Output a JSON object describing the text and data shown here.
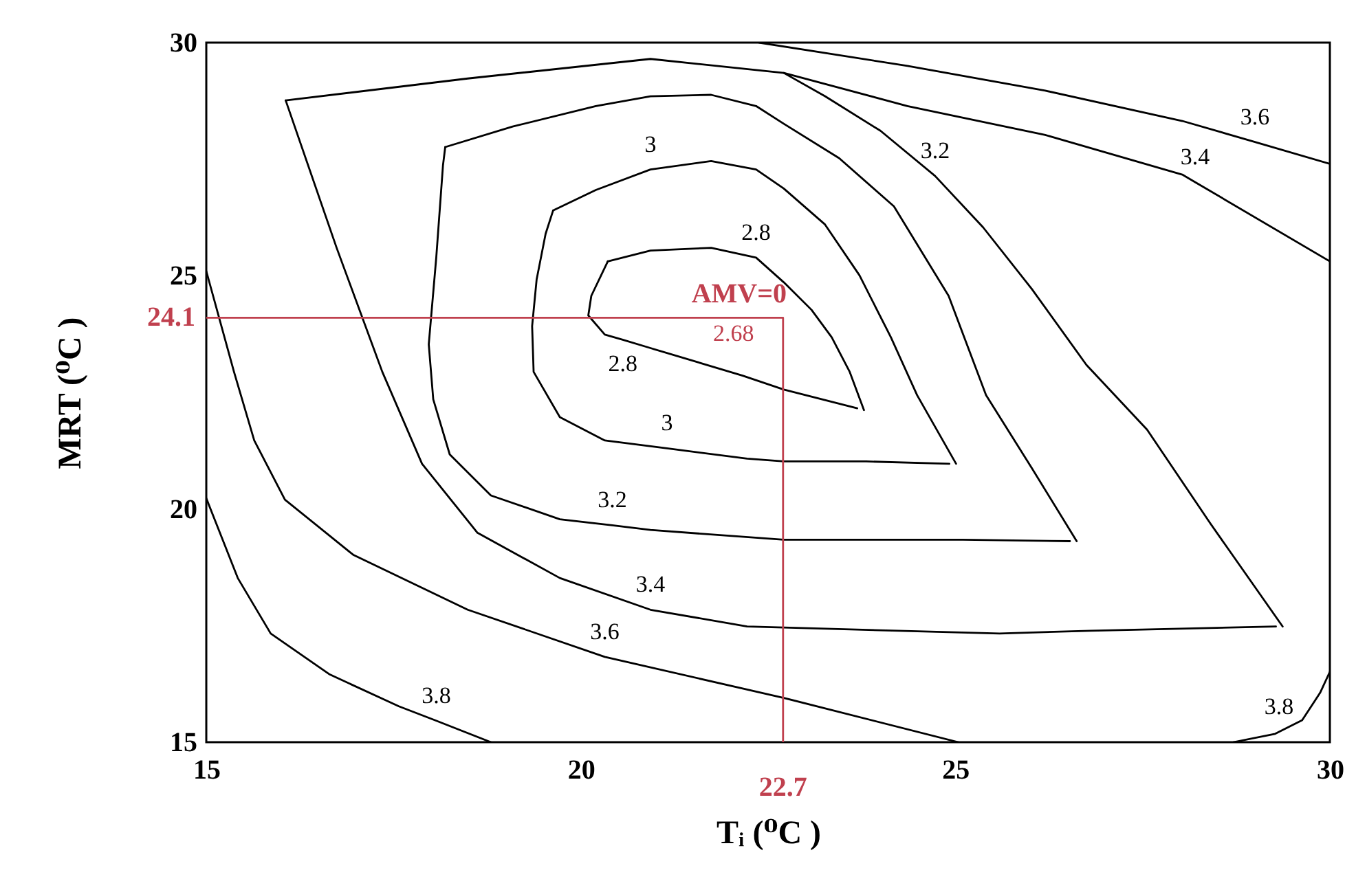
{
  "chart_data": {
    "type": "line",
    "xlabel": "Tᵢ (⁰C )",
    "ylabel": "MRT (⁰C )",
    "xlim": [
      15,
      30
    ],
    "ylim": [
      15,
      30
    ],
    "xticks": [
      15,
      20,
      25,
      30
    ],
    "yticks": [
      15,
      20,
      25,
      30
    ],
    "series": [
      {
        "color": "#000000",
        "x": [
          20.36,
          20.93,
          21.74,
          22.34,
          22.71,
          23.08,
          23.35,
          23.59,
          23.78
        ],
        "values": [
          25.31,
          25.54,
          25.6,
          25.39,
          24.86,
          24.27,
          23.68,
          22.94,
          22.12
        ]
      },
      {
        "color": "#000000",
        "x": [
          20.36,
          20.14,
          20.1,
          20.32,
          20.56,
          20.93,
          22.16,
          22.71,
          23.69
        ],
        "values": [
          25.31,
          24.57,
          24.15,
          23.74,
          23.63,
          23.45,
          22.86,
          22.56,
          22.16
        ]
      },
      {
        "color": "#000000",
        "x": [
          19.63,
          20.2,
          20.93,
          21.74,
          22.34,
          22.71,
          23.26,
          23.72,
          24.14,
          24.49,
          25.01
        ],
        "values": [
          26.4,
          26.84,
          27.28,
          27.46,
          27.28,
          26.87,
          26.1,
          25.01,
          23.68,
          22.44,
          20.97
        ]
      },
      {
        "color": "#000000",
        "x": [
          19.63,
          19.53,
          19.41,
          19.35,
          19.37,
          19.72,
          20.32,
          21.15,
          22.22,
          22.71,
          23.81,
          24.92
        ],
        "values": [
          26.4,
          25.9,
          24.92,
          23.92,
          22.94,
          21.97,
          21.47,
          21.3,
          21.08,
          21.02,
          21.02,
          20.97
        ]
      },
      {
        "color": "#000000",
        "x": [
          18.19,
          19.09,
          20.2,
          20.93,
          21.74,
          22.34,
          22.71,
          23.45,
          24.18,
          24.91,
          25.41,
          26.02,
          26.62
        ],
        "values": [
          27.76,
          28.2,
          28.64,
          28.85,
          28.88,
          28.64,
          28.26,
          27.52,
          26.49,
          24.57,
          22.44,
          20.88,
          19.31
        ]
      },
      {
        "color": "#000000",
        "x": [
          18.19,
          18.16,
          18.07,
          17.97,
          18.03,
          18.25,
          18.8,
          19.72,
          20.42,
          20.93,
          22.71,
          25.1,
          26.53
        ],
        "values": [
          27.76,
          27.37,
          25.39,
          23.53,
          22.35,
          21.17,
          20.29,
          19.78,
          19.65,
          19.55,
          19.34,
          19.34,
          19.31
        ]
      },
      {
        "color": "#000000",
        "x": [
          16.06,
          18.49,
          20.93,
          22.71,
          23.26,
          24.0,
          24.73,
          25.37,
          26.02,
          26.75,
          27.56,
          28.4,
          29.37
        ],
        "values": [
          28.76,
          29.23,
          29.65,
          29.35,
          28.85,
          28.11,
          27.14,
          26.04,
          24.72,
          23.09,
          21.7,
          19.7,
          17.48
        ]
      },
      {
        "color": "#000000",
        "x": [
          16.06,
          16.74,
          17.35,
          17.88,
          18.62,
          19.72,
          20.93,
          22.22,
          25.59,
          26.8,
          29.28
        ],
        "values": [
          28.76,
          25.6,
          22.94,
          20.97,
          19.49,
          18.52,
          17.84,
          17.48,
          17.33,
          17.39,
          17.48
        ]
      },
      {
        "color": "#000000",
        "x": [
          22.38,
          24.36,
          26.2,
          28.03,
          29.0,
          30
        ],
        "values": [
          30,
          29.5,
          28.97,
          28.32,
          27.87,
          27.4
        ]
      },
      {
        "color": "#000000",
        "x": [
          22.71,
          24.36,
          26.2,
          28.03,
          28.2,
          30
        ],
        "values": [
          29.35,
          28.64,
          28.02,
          27.17,
          27.01,
          25.31
        ]
      },
      {
        "color": "#000000",
        "x": [
          15,
          15.37,
          15.64,
          16.05,
          16.96,
          18.49,
          20.32,
          22.16,
          22.71,
          25.04
        ],
        "values": [
          25.1,
          22.94,
          21.47,
          20.2,
          19.02,
          17.84,
          16.83,
          16.15,
          15.95,
          15
        ]
      },
      {
        "color": "#000000",
        "x": [
          15,
          15.42,
          15.86,
          16.65,
          17.57,
          18.07,
          18.8
        ],
        "values": [
          20.23,
          18.52,
          17.33,
          16.45,
          15.77,
          15.46,
          15
        ]
      },
      {
        "color": "#000000",
        "x": [
          28.71,
          29.27,
          29.32,
          29.63,
          29.87,
          30
        ],
        "values": [
          15,
          15.18,
          15.22,
          15.47,
          16.06,
          16.51
        ]
      },
      {
        "color": "#c0404e",
        "x": [
          15,
          22.7,
          22.7
        ],
        "values": [
          24.1,
          24.1,
          15
        ]
      }
    ],
    "annotations": [
      {
        "text": "3.6",
        "x": 29.0,
        "y": 27.87
      },
      {
        "text": "3.4",
        "x": 28.2,
        "y": 27.01
      },
      {
        "text": "3.2",
        "x": 24.73,
        "y": 27.14
      },
      {
        "text": "3",
        "x": 20.93,
        "y": 27.28
      },
      {
        "text": "2.8",
        "x": 22.34,
        "y": 25.39
      },
      {
        "text": "AMV=0",
        "x": 22.7,
        "y": 24.1
      },
      {
        "text": "2.68",
        "x": 22.7,
        "y": 24.1
      },
      {
        "text": "2.8",
        "x": 20.56,
        "y": 23.63
      },
      {
        "text": "3",
        "x": 21.15,
        "y": 21.3
      },
      {
        "text": "3.2",
        "x": 20.42,
        "y": 19.65
      },
      {
        "text": "3.4",
        "x": 20.93,
        "y": 17.84
      },
      {
        "text": "3.8",
        "x": 18.07,
        "y": 15.46
      },
      {
        "text": "3.6",
        "x": 20.32,
        "y": 16.83
      },
      {
        "text": "3.8",
        "x": 29.32,
        "y": 15.22
      },
      {
        "text": "24.1",
        "x": 15,
        "y": 24.1
      },
      {
        "text": "22.7",
        "x": 22.7,
        "y": 15
      }
    ]
  }
}
